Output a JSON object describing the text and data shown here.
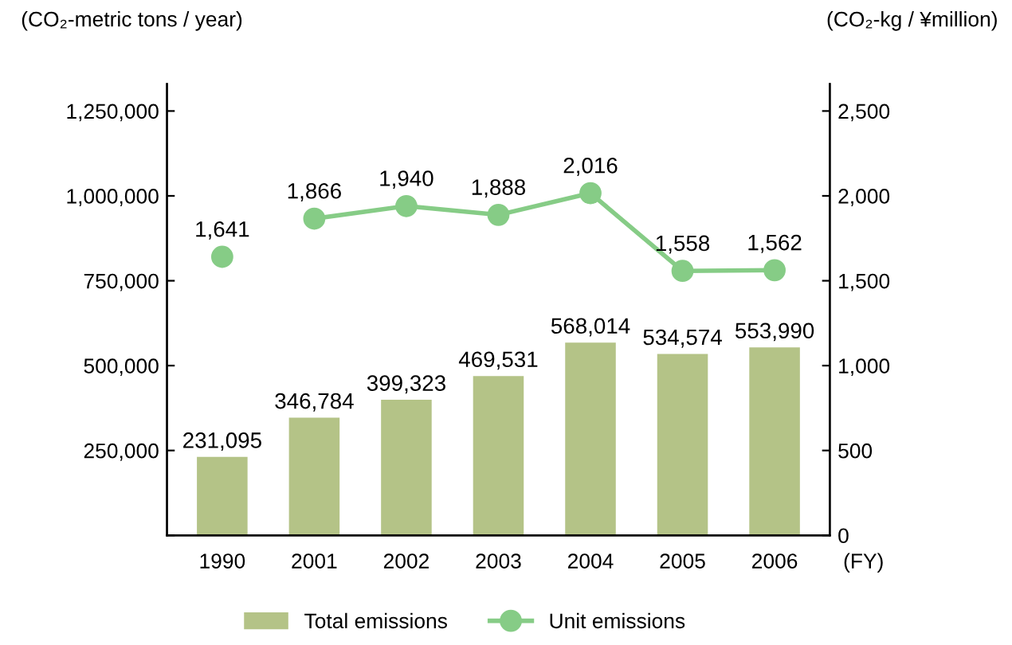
{
  "chart_data": {
    "type": "bar",
    "categories": [
      "1990",
      "2001",
      "2002",
      "2003",
      "2004",
      "2005",
      "2006"
    ],
    "xlabel": "(FY)",
    "ylabel": "(CO₂-metric tons / year)",
    "y2label": "(CO₂-kg / ¥million)",
    "series": [
      {
        "name": "Total emissions",
        "color": "#b4c387",
        "values": [
          231095,
          346784,
          399323,
          469531,
          568014,
          534574,
          553990
        ],
        "value_labels": [
          "231,095",
          "346,784",
          "399,323",
          "469,531",
          "568,014",
          "534,574",
          "553,990"
        ]
      },
      {
        "name": "Unit emissions",
        "type": "line",
        "axis": "y2",
        "color": "#86cc86",
        "values": [
          null,
          1866,
          1940,
          1888,
          2016,
          1558,
          1562
        ],
        "value_labels": [
          null,
          "1,866",
          "1,940",
          "1,888",
          "2,016",
          "1,558",
          "1,562"
        ]
      },
      {
        "type": "scatter",
        "axis": "y2",
        "color": "#86cc86",
        "values": [
          1641,
          null,
          null,
          null,
          null,
          null,
          null
        ],
        "value_labels": [
          "1,641",
          null,
          null,
          null,
          null,
          null,
          null
        ]
      }
    ],
    "ylim": [
      0,
      1330000
    ],
    "yticks": [
      {
        "value": 0,
        "label": null
      },
      {
        "value": 250000,
        "label": "250,000"
      },
      {
        "value": 500000,
        "label": "500,000"
      },
      {
        "value": 750000,
        "label": "750,000"
      },
      {
        "value": 1000000,
        "label": "1,000,000"
      },
      {
        "value": 1250000,
        "label": "1,250,000"
      }
    ],
    "y2lim": [
      0,
      2660
    ],
    "y2ticks": [
      {
        "value": 0,
        "label": "0"
      },
      {
        "value": 500,
        "label": "500"
      },
      {
        "value": 1000,
        "label": "1,000"
      },
      {
        "value": 1500,
        "label": "1,500"
      },
      {
        "value": 2000,
        "label": "2,000"
      },
      {
        "value": 2500,
        "label": "2,500"
      }
    ],
    "marker": "circle",
    "grid": false,
    "legend": "bottom"
  }
}
